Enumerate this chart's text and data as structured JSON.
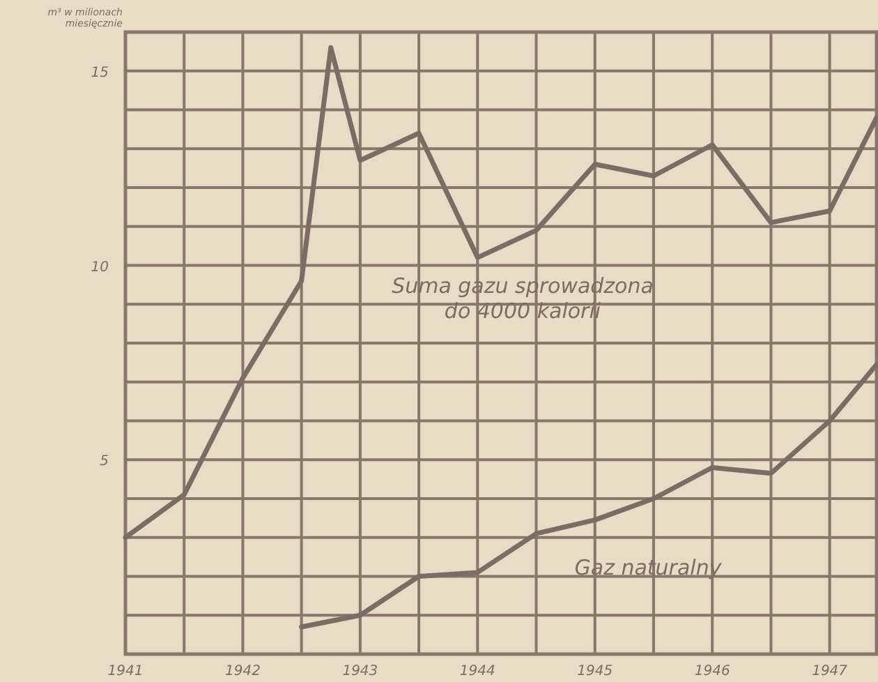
{
  "chart_data": {
    "type": "line",
    "ylabel": "m³ w milionach\nmiesięcznie",
    "xlim": [
      1941,
      1947.4
    ],
    "ylim": [
      0,
      16
    ],
    "xticks": [
      1941,
      {
        "value": 1941.5,
        "label": null
      },
      1942,
      {
        "value": 1942.5,
        "label": null
      },
      1943,
      {
        "value": 1943.5,
        "label": null
      },
      1944,
      {
        "value": 1944.5,
        "label": null
      },
      1945,
      {
        "value": 1945.5,
        "label": null
      },
      1946,
      {
        "value": 1946.5,
        "label": null
      },
      1947
    ],
    "yticks": [
      {
        "value": 0,
        "label": null
      },
      {
        "value": 1,
        "label": null
      },
      {
        "value": 2,
        "label": null
      },
      {
        "value": 3,
        "label": null
      },
      {
        "value": 4,
        "label": null
      },
      5,
      {
        "value": 6,
        "label": null
      },
      {
        "value": 7,
        "label": null
      },
      {
        "value": 8,
        "label": null
      },
      {
        "value": 9,
        "label": null
      },
      10,
      {
        "value": 11,
        "label": null
      },
      {
        "value": 12,
        "label": null
      },
      {
        "value": 13,
        "label": null
      },
      {
        "value": 14,
        "label": null
      },
      15,
      {
        "value": 16,
        "label": null
      }
    ],
    "grid": true,
    "line_style": "solid",
    "marker": "none",
    "series": [
      {
        "name": "Suma gazu sprowadzona do 4000 kalorii",
        "color": "#7d6c64",
        "x": [
          1941,
          1941.5,
          1942,
          1942.5,
          1942.75,
          1943,
          1943.5,
          1944,
          1944.5,
          1945,
          1945.5,
          1946,
          1946.5,
          1947,
          1947.4
        ],
        "values": [
          3.0,
          4.1,
          7.1,
          9.6,
          15.6,
          12.7,
          13.4,
          10.2,
          10.9,
          12.6,
          12.3,
          13.1,
          11.1,
          11.4,
          13.8
        ]
      },
      {
        "name": "Gaz naturalny",
        "color": "#7d6c64",
        "x": [
          1942.5,
          1943,
          1943.5,
          1944,
          1944.5,
          1945,
          1945.5,
          1946,
          1946.5,
          1947,
          1947.4
        ],
        "values": [
          0.7,
          1.0,
          2.0,
          2.1,
          3.1,
          3.45,
          4.0,
          4.8,
          4.65,
          6.0,
          7.45
        ]
      }
    ]
  }
}
